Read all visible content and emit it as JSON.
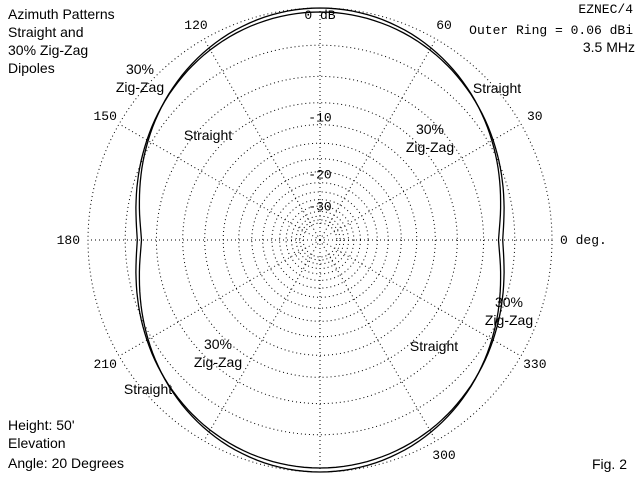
{
  "header": {
    "title_lines": [
      "Azimuth Patterns",
      "Straight and",
      "30% Zig-Zag",
      "Dipoles"
    ],
    "program": "EZNEC/4",
    "outer_ring": "Outer Ring = 0.06 dBi",
    "frequency": "3.5 MHz"
  },
  "footer": {
    "info_lines": [
      "Height: 50'",
      "Elevation",
      "Angle: 20 Degrees"
    ],
    "figure": "Fig. 2"
  },
  "chart_data": {
    "type": "polar",
    "title": "Azimuth Patterns Straight and 30% Zig-Zag Dipoles",
    "outer_ring_dbi": 0.06,
    "frequency": "3.5 MHz",
    "rings_db": [
      {
        "value": 0,
        "label": "0 dB"
      },
      {
        "value": -10,
        "label": "-10"
      },
      {
        "value": -20,
        "label": "-20"
      },
      {
        "value": -30,
        "label": "-30"
      }
    ],
    "angle_labels": [
      {
        "angle": 0,
        "label": "0 deg."
      },
      {
        "angle": 30,
        "label": "30"
      },
      {
        "angle": 60,
        "label": "60"
      },
      {
        "angle": 120,
        "label": "120"
      },
      {
        "angle": 150,
        "label": "150"
      },
      {
        "angle": 180,
        "label": "180"
      },
      {
        "angle": 210,
        "label": "210"
      },
      {
        "angle": 300,
        "label": "300"
      },
      {
        "angle": 330,
        "label": "330"
      }
    ],
    "series": [
      {
        "name": "Straight",
        "max_db": 0.0,
        "min_db": -4.5,
        "min_at_deg": 0
      },
      {
        "name": "30% Zig-Zag",
        "max_db": -0.3,
        "min_db": -4.1,
        "min_at_deg": 0
      }
    ],
    "trace_labels": [
      {
        "series": "Straight",
        "text": "Straight",
        "angle_deg": 38
      },
      {
        "series": "Straight",
        "text": "Straight",
        "angle_deg": 128
      },
      {
        "series": "Straight",
        "text": "Straight",
        "angle_deg": 232
      },
      {
        "series": "Straight",
        "text": "Straight",
        "angle_deg": 318
      },
      {
        "series": "30% Zig-Zag",
        "text": "30%|Zig-Zag",
        "angle_deg": 48
      },
      {
        "series": "30% Zig-Zag",
        "text": "30%|Zig-Zag",
        "angle_deg": 140
      },
      {
        "series": "30% Zig-Zag",
        "text": "30%|Zig-Zag",
        "angle_deg": 222
      },
      {
        "series": "30% Zig-Zag",
        "text": "30%|Zig-Zag",
        "angle_deg": 337
      }
    ]
  }
}
